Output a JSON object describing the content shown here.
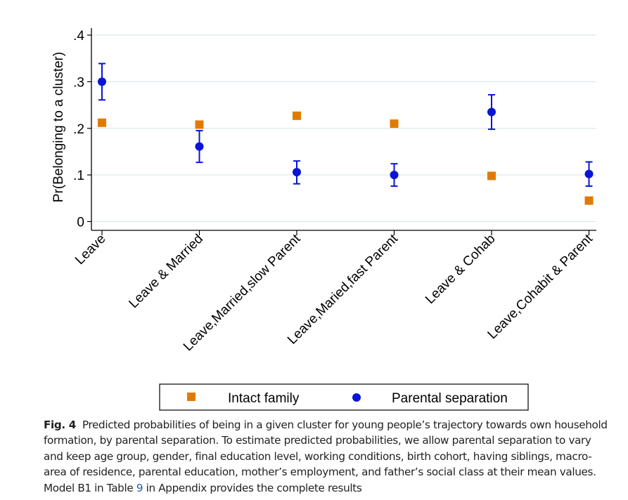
{
  "chart_data": {
    "type": "scatter",
    "ylabel": "Pr(Belonging to a cluster)",
    "xlabel": "",
    "ylim": [
      0,
      0.4
    ],
    "yticks": [
      0,
      0.1,
      0.2,
      0.3,
      0.4
    ],
    "ytick_labels": [
      "0",
      ".1",
      ".2",
      ".3",
      ".4"
    ],
    "grid": true,
    "categories": [
      "Leave",
      "Leave & Married",
      "Leave,Married,slow Parent",
      "Leave,Maried,fast Parent",
      "Leave & Cohab",
      "Leave,Cohabit & Parent"
    ],
    "series": [
      {
        "name": "Intact family",
        "marker": "square",
        "color": "#e07b00",
        "values": [
          0.212,
          0.208,
          0.227,
          0.21,
          0.098,
          0.045
        ]
      },
      {
        "name": "Parental separation",
        "marker": "circle",
        "color": "#0a14d6",
        "values": [
          0.3,
          0.161,
          0.106,
          0.1,
          0.235,
          0.102
        ],
        "ci_low": [
          0.261,
          0.127,
          0.081,
          0.076,
          0.198,
          0.076
        ],
        "ci_high": [
          0.339,
          0.195,
          0.13,
          0.124,
          0.272,
          0.128
        ]
      }
    ],
    "legend_position": "bottom"
  },
  "caption": {
    "label": "Fig. 4",
    "text_before_ref": "Predicted probabilities of being in a given cluster for young people’s trajectory towards own household formation, by parental separation. To estimate predicted probabilities, we allow parental separation to vary and keep age group, gender, final education level, working conditions, birth cohort, having siblings, macro-area of residence, parental education, mother’s employment, and father’s social class at their mean values. Model B1 in Table ",
    "ref": "9",
    "text_after_ref": " in Appendix provides the complete results"
  }
}
